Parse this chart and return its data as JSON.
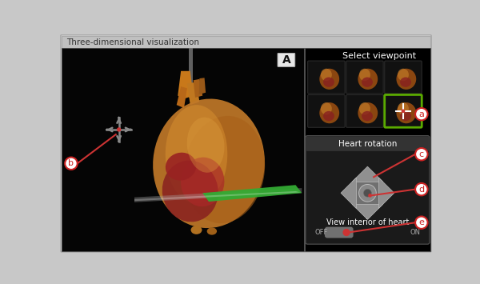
{
  "title": "Three-dimensional visualization",
  "outer_bg": "#c8c8c8",
  "title_bar_color": "#c0c0c0",
  "title_text_color": "#333333",
  "black_area": "#000000",
  "right_panel_bg": "#000000",
  "label_a": "a",
  "label_b": "b",
  "label_c": "c",
  "label_d": "d",
  "label_e": "e",
  "select_viewpoint_text": "Select viewpoint",
  "heart_rotation_text": "Heart rotation",
  "view_interior_text": "View interior of heart",
  "off_text": "OFF",
  "on_text": "ON",
  "A_label": "A",
  "circle_fill": "#ffffff",
  "circle_edge": "#cc2222",
  "arrow_color": "#cc3333",
  "viewpoint_selected_color": "#5aaa00",
  "rot_box_bg": "#222222",
  "rot_box_edge": "#555555",
  "diamond_color": "#909090",
  "diamond_edge": "#bbbbbb",
  "center_sq_color": "#707070",
  "center_circle_color": "#888888",
  "inner_circle_color": "#505050",
  "toggle_track": "#707070",
  "toggle_dot": "#cc3333",
  "crosshair_color": "#888888",
  "crosshair_dot": "#cc3333",
  "A_box_fill": "#e8e8e8",
  "A_box_edge": "#aaaaaa",
  "thumb_bg": "#111111",
  "thumb_edge": "#2a2a2a",
  "gray_pole": "#888888"
}
